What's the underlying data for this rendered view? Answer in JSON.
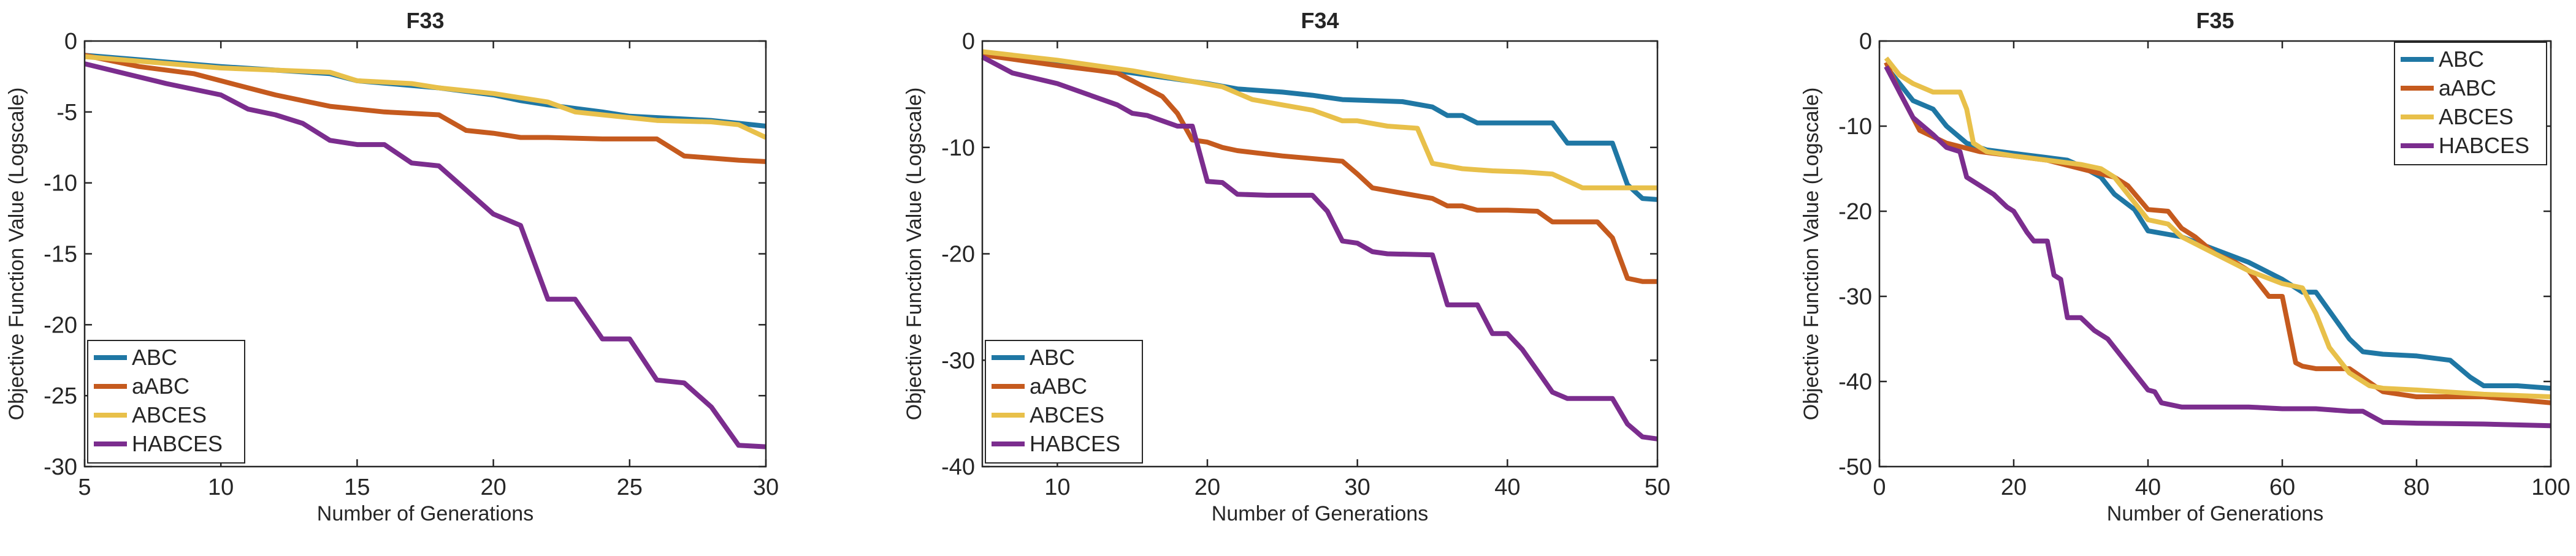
{
  "colors": {
    "ABC": "#1f77a4",
    "aABC": "#c55a1e",
    "ABCES": "#e8c04a",
    "HABCES": "#7b2d8e"
  },
  "chart_data": [
    {
      "type": "line",
      "title": "F33",
      "xlabel": "Number of Generations",
      "ylabel": "Objective Function Value (Logscale)",
      "xlim": [
        5,
        30
      ],
      "ylim": [
        -30,
        0
      ],
      "xticks": [
        5,
        10,
        15,
        20,
        25,
        30
      ],
      "yticks": [
        0,
        -5,
        -10,
        -15,
        -20,
        -25,
        -30
      ],
      "legend": {
        "location": "bottom-left",
        "entries": [
          "ABC",
          "aABC",
          "ABCES",
          "HABCES"
        ]
      },
      "series": [
        {
          "name": "ABC",
          "x": [
            5,
            10,
            14,
            15,
            18,
            20,
            21,
            22,
            24,
            25,
            28,
            30
          ],
          "y": [
            -1.0,
            -1.8,
            -2.3,
            -2.8,
            -3.3,
            -3.8,
            -4.2,
            -4.5,
            -5.0,
            -5.3,
            -5.6,
            -6.0
          ]
        },
        {
          "name": "aABC",
          "x": [
            5,
            7,
            9,
            10,
            11,
            12,
            13,
            14,
            15,
            16,
            18,
            19,
            20,
            21,
            22,
            24,
            26,
            27,
            29,
            30
          ],
          "y": [
            -1.0,
            -1.8,
            -2.3,
            -2.8,
            -3.3,
            -3.8,
            -4.2,
            -4.6,
            -4.8,
            -5.0,
            -5.2,
            -6.3,
            -6.5,
            -6.8,
            -6.8,
            -6.9,
            -6.9,
            -8.1,
            -8.4,
            -8.5
          ]
        },
        {
          "name": "ABCES",
          "x": [
            5,
            10,
            14,
            15,
            17,
            18,
            20,
            21,
            22,
            23,
            24,
            26,
            28,
            29,
            30
          ],
          "y": [
            -1.1,
            -1.9,
            -2.2,
            -2.8,
            -3.0,
            -3.3,
            -3.7,
            -4.0,
            -4.3,
            -5.0,
            -5.2,
            -5.6,
            -5.7,
            -5.9,
            -6.8
          ]
        },
        {
          "name": "HABCES",
          "x": [
            5,
            8,
            10,
            11,
            12,
            13,
            14,
            15,
            16,
            17,
            18,
            20,
            21,
            22,
            23,
            24,
            25,
            26,
            27,
            28,
            29,
            30
          ],
          "y": [
            -1.6,
            -3.0,
            -3.8,
            -4.8,
            -5.2,
            -5.8,
            -7.0,
            -7.3,
            -7.3,
            -8.6,
            -8.8,
            -12.2,
            -13.0,
            -18.2,
            -18.2,
            -21.0,
            -21.0,
            -23.9,
            -24.1,
            -25.8,
            -28.5,
            -28.6
          ]
        }
      ]
    },
    {
      "type": "line",
      "title": "F34",
      "xlabel": "Number of Generations",
      "ylabel": "Objective Function Value (Logscale)",
      "xlim": [
        5,
        50
      ],
      "ylim": [
        -40,
        0
      ],
      "xticks": [
        10,
        20,
        30,
        40,
        50
      ],
      "yticks": [
        0,
        -10,
        -20,
        -30,
        -40
      ],
      "legend": {
        "location": "bottom-left",
        "entries": [
          "ABC",
          "aABC",
          "ABCES",
          "HABCES"
        ]
      },
      "series": [
        {
          "name": "ABC",
          "x": [
            5,
            10,
            15,
            20,
            22,
            25,
            27,
            29,
            33,
            35,
            36,
            37,
            38,
            40,
            43,
            44,
            46,
            47,
            48,
            49,
            50
          ],
          "y": [
            -1.2,
            -2.0,
            -3.0,
            -4.0,
            -4.5,
            -4.8,
            -5.1,
            -5.5,
            -5.7,
            -6.2,
            -7.0,
            -7.0,
            -7.7,
            -7.7,
            -7.7,
            -9.6,
            -9.6,
            -9.6,
            -13.5,
            -14.8,
            -14.9
          ]
        },
        {
          "name": "aABC",
          "x": [
            5,
            10,
            14,
            17,
            18,
            19,
            20,
            21,
            22,
            25,
            29,
            30,
            31,
            33,
            35,
            36,
            37,
            38,
            40,
            42,
            43,
            46,
            47,
            48,
            49,
            50
          ],
          "y": [
            -1.3,
            -2.3,
            -3.0,
            -5.2,
            -6.8,
            -9.3,
            -9.5,
            -10.0,
            -10.3,
            -10.8,
            -11.3,
            -12.5,
            -13.8,
            -14.3,
            -14.8,
            -15.5,
            -15.5,
            -15.9,
            -15.9,
            -16.0,
            -17.0,
            -17.0,
            -18.5,
            -22.3,
            -22.6,
            -22.6
          ]
        },
        {
          "name": "ABCES",
          "x": [
            5,
            10,
            15,
            19,
            21,
            23,
            25,
            27,
            29,
            30,
            32,
            34,
            35,
            37,
            39,
            41,
            43,
            45,
            47,
            48,
            50
          ],
          "y": [
            -1.0,
            -1.8,
            -2.8,
            -3.8,
            -4.3,
            -5.5,
            -6.0,
            -6.5,
            -7.5,
            -7.5,
            -8.0,
            -8.2,
            -11.5,
            -12.0,
            -12.2,
            -12.3,
            -12.5,
            -13.8,
            -13.8,
            -13.8,
            -13.8
          ]
        },
        {
          "name": "HABCES",
          "x": [
            5,
            7,
            10,
            12,
            14,
            15,
            16,
            17,
            18,
            19,
            20,
            21,
            22,
            24,
            27,
            28,
            29,
            30,
            31,
            32,
            35,
            36,
            37,
            38,
            39,
            40,
            41,
            42,
            43,
            44,
            47,
            48,
            49,
            50
          ],
          "y": [
            -1.5,
            -3.0,
            -4.0,
            -5.0,
            -6.0,
            -6.8,
            -7.0,
            -7.5,
            -8.0,
            -8.0,
            -13.2,
            -13.3,
            -14.4,
            -14.5,
            -14.5,
            -16.0,
            -18.8,
            -19.0,
            -19.8,
            -20.0,
            -20.1,
            -24.8,
            -24.8,
            -24.8,
            -27.5,
            -27.5,
            -29.0,
            -31.0,
            -33.0,
            -33.6,
            -33.6,
            -36.0,
            -37.2,
            -37.4
          ]
        }
      ]
    },
    {
      "type": "line",
      "title": "F35",
      "xlabel": "Number of Generations",
      "ylabel": "Objective Function Value (Logscale)",
      "xlim": [
        0,
        100
      ],
      "ylim": [
        -50,
        0
      ],
      "xticks": [
        0,
        20,
        40,
        60,
        80,
        100
      ],
      "yticks": [
        0,
        -10,
        -20,
        -30,
        -40,
        -50
      ],
      "legend": {
        "location": "top-right",
        "entries": [
          "ABC",
          "aABC",
          "ABCES",
          "HABCES"
        ]
      },
      "series": [
        {
          "name": "ABC",
          "x": [
            1,
            3,
            5,
            8,
            10,
            13,
            16,
            20,
            25,
            28,
            30,
            33,
            35,
            38,
            40,
            45,
            50,
            55,
            60,
            63,
            65,
            70,
            72,
            75,
            80,
            85,
            88,
            90,
            95,
            100
          ],
          "y": [
            -3.0,
            -5.0,
            -7.0,
            -8.0,
            -10.0,
            -12.0,
            -12.8,
            -13.2,
            -13.7,
            -14.0,
            -14.7,
            -16.0,
            -18.0,
            -19.8,
            -22.3,
            -23.0,
            -24.5,
            -26.0,
            -28.0,
            -29.5,
            -29.5,
            -35.0,
            -36.5,
            -36.8,
            -37.0,
            -37.5,
            -39.5,
            -40.5,
            -40.5,
            -40.8
          ]
        },
        {
          "name": "aABC",
          "x": [
            1,
            3,
            6,
            10,
            15,
            20,
            25,
            30,
            35,
            37,
            40,
            43,
            45,
            47,
            50,
            53,
            55,
            58,
            60,
            62,
            63,
            65,
            70,
            75,
            80,
            90,
            100
          ],
          "y": [
            -2.5,
            -6.0,
            -10.5,
            -12.0,
            -13.0,
            -13.5,
            -14.0,
            -15.0,
            -16.0,
            -17.0,
            -19.8,
            -20.0,
            -22.0,
            -23.0,
            -25.0,
            -26.0,
            -27.0,
            -30.0,
            -30.0,
            -37.8,
            -38.2,
            -38.5,
            -38.5,
            -41.2,
            -41.8,
            -41.8,
            -42.5
          ]
        },
        {
          "name": "ABCES",
          "x": [
            1,
            3,
            5,
            8,
            10,
            12,
            13,
            14,
            16,
            20,
            25,
            30,
            33,
            35,
            37,
            40,
            43,
            45,
            50,
            55,
            60,
            63,
            65,
            67,
            70,
            73,
            75,
            80,
            90,
            100
          ],
          "y": [
            -2.0,
            -4.0,
            -5.0,
            -6.0,
            -6.0,
            -6.0,
            -8.0,
            -12.0,
            -13.0,
            -13.5,
            -14.0,
            -14.5,
            -15.0,
            -16.0,
            -18.0,
            -21.0,
            -21.5,
            -23.0,
            -25.0,
            -27.0,
            -28.5,
            -29.0,
            -32.0,
            -36.0,
            -39.0,
            -40.5,
            -40.8,
            -41.0,
            -41.5,
            -41.8
          ]
        },
        {
          "name": "HABCES",
          "x": [
            1,
            3,
            5,
            8,
            10,
            12,
            13,
            15,
            17,
            19,
            20,
            22,
            23,
            25,
            26,
            27,
            28,
            30,
            32,
            34,
            36,
            38,
            40,
            41,
            42,
            45,
            50,
            55,
            60,
            65,
            70,
            72,
            75,
            80,
            90,
            100
          ],
          "y": [
            -3.0,
            -6.0,
            -9.0,
            -11.0,
            -12.5,
            -13.0,
            -16.0,
            -17.0,
            -18.0,
            -19.5,
            -20.0,
            -22.5,
            -23.5,
            -23.5,
            -27.5,
            -28.0,
            -32.5,
            -32.5,
            -34.0,
            -35.0,
            -37.0,
            -39.0,
            -41.0,
            -41.2,
            -42.5,
            -43.0,
            -43.0,
            -43.0,
            -43.2,
            -43.2,
            -43.5,
            -43.5,
            -44.8,
            -44.9,
            -45.0,
            -45.2
          ]
        }
      ]
    }
  ]
}
